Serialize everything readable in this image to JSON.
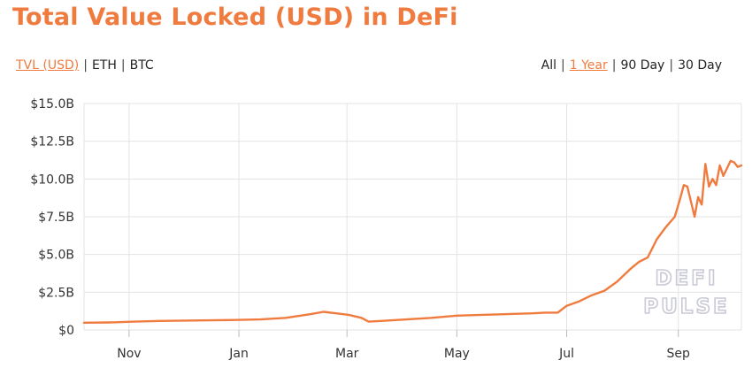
{
  "title": "Total Value Locked (USD) in DeFi",
  "unit_toggle": [
    {
      "label": "TVL (USD)",
      "active": true
    },
    {
      "label": "ETH",
      "active": false
    },
    {
      "label": "BTC",
      "active": false
    }
  ],
  "range_toggle": [
    {
      "label": "All",
      "active": false
    },
    {
      "label": "1 Year",
      "active": true
    },
    {
      "label": "90 Day",
      "active": false
    },
    {
      "label": "30 Day",
      "active": false
    }
  ],
  "separator": "|",
  "watermark": [
    "DEFI",
    "PULSE"
  ],
  "colors": {
    "accent": "#f07b3f",
    "line": "#f07b3f",
    "grid": "#e3e3e3"
  },
  "chart_data": {
    "type": "line",
    "title": "Total Value Locked (USD) in DeFi",
    "xlabel": "",
    "ylabel": "",
    "ylim": [
      0,
      15
    ],
    "y_unit": "billion USD",
    "yticks": [
      0,
      2.5,
      5,
      7.5,
      10,
      12.5,
      15
    ],
    "ytick_labels": [
      "$0",
      "$2.5B",
      "$5.0B",
      "$7.5B",
      "$10.0B",
      "$12.5B",
      "$15.0B"
    ],
    "xlim": [
      "2019-10-07",
      "2020-10-06"
    ],
    "xticks": [
      "2019-11-01",
      "2020-01-01",
      "2020-03-01",
      "2020-05-01",
      "2020-07-01",
      "2020-09-01"
    ],
    "xtick_labels": [
      "Nov",
      "Jan",
      "Mar",
      "May",
      "Jul",
      "Sep"
    ],
    "grid": true,
    "series": [
      {
        "x": [
          "2019-10-07",
          "2019-10-21",
          "2019-11-04",
          "2019-11-18",
          "2019-12-02",
          "2019-12-16",
          "2019-12-30",
          "2020-01-13",
          "2020-01-27",
          "2020-02-10",
          "2020-02-17",
          "2020-02-24",
          "2020-03-02",
          "2020-03-09",
          "2020-03-13",
          "2020-03-20",
          "2020-04-03",
          "2020-04-17",
          "2020-05-01",
          "2020-05-15",
          "2020-05-29",
          "2020-06-12",
          "2020-06-19",
          "2020-06-26",
          "2020-07-01",
          "2020-07-08",
          "2020-07-15",
          "2020-07-22",
          "2020-07-29",
          "2020-08-05",
          "2020-08-10",
          "2020-08-15",
          "2020-08-20",
          "2020-08-25",
          "2020-08-30",
          "2020-09-02",
          "2020-09-04",
          "2020-09-06",
          "2020-09-08",
          "2020-09-10",
          "2020-09-12",
          "2020-09-14",
          "2020-09-16",
          "2020-09-18",
          "2020-09-20",
          "2020-09-22",
          "2020-09-24",
          "2020-09-26",
          "2020-09-28",
          "2020-09-30",
          "2020-10-02",
          "2020-10-04",
          "2020-10-06"
        ],
        "values": [
          0.48,
          0.5,
          0.55,
          0.6,
          0.62,
          0.64,
          0.66,
          0.7,
          0.8,
          1.05,
          1.2,
          1.1,
          1.0,
          0.8,
          0.55,
          0.6,
          0.7,
          0.8,
          0.95,
          1.0,
          1.05,
          1.1,
          1.15,
          1.15,
          1.6,
          1.9,
          2.3,
          2.6,
          3.2,
          4.0,
          4.5,
          4.8,
          6.0,
          6.8,
          7.5,
          8.7,
          9.6,
          9.5,
          8.5,
          7.5,
          8.8,
          8.3,
          11.0,
          9.5,
          10.0,
          9.6,
          10.9,
          10.2,
          10.7,
          11.2,
          11.1,
          10.8,
          10.9
        ]
      }
    ]
  }
}
